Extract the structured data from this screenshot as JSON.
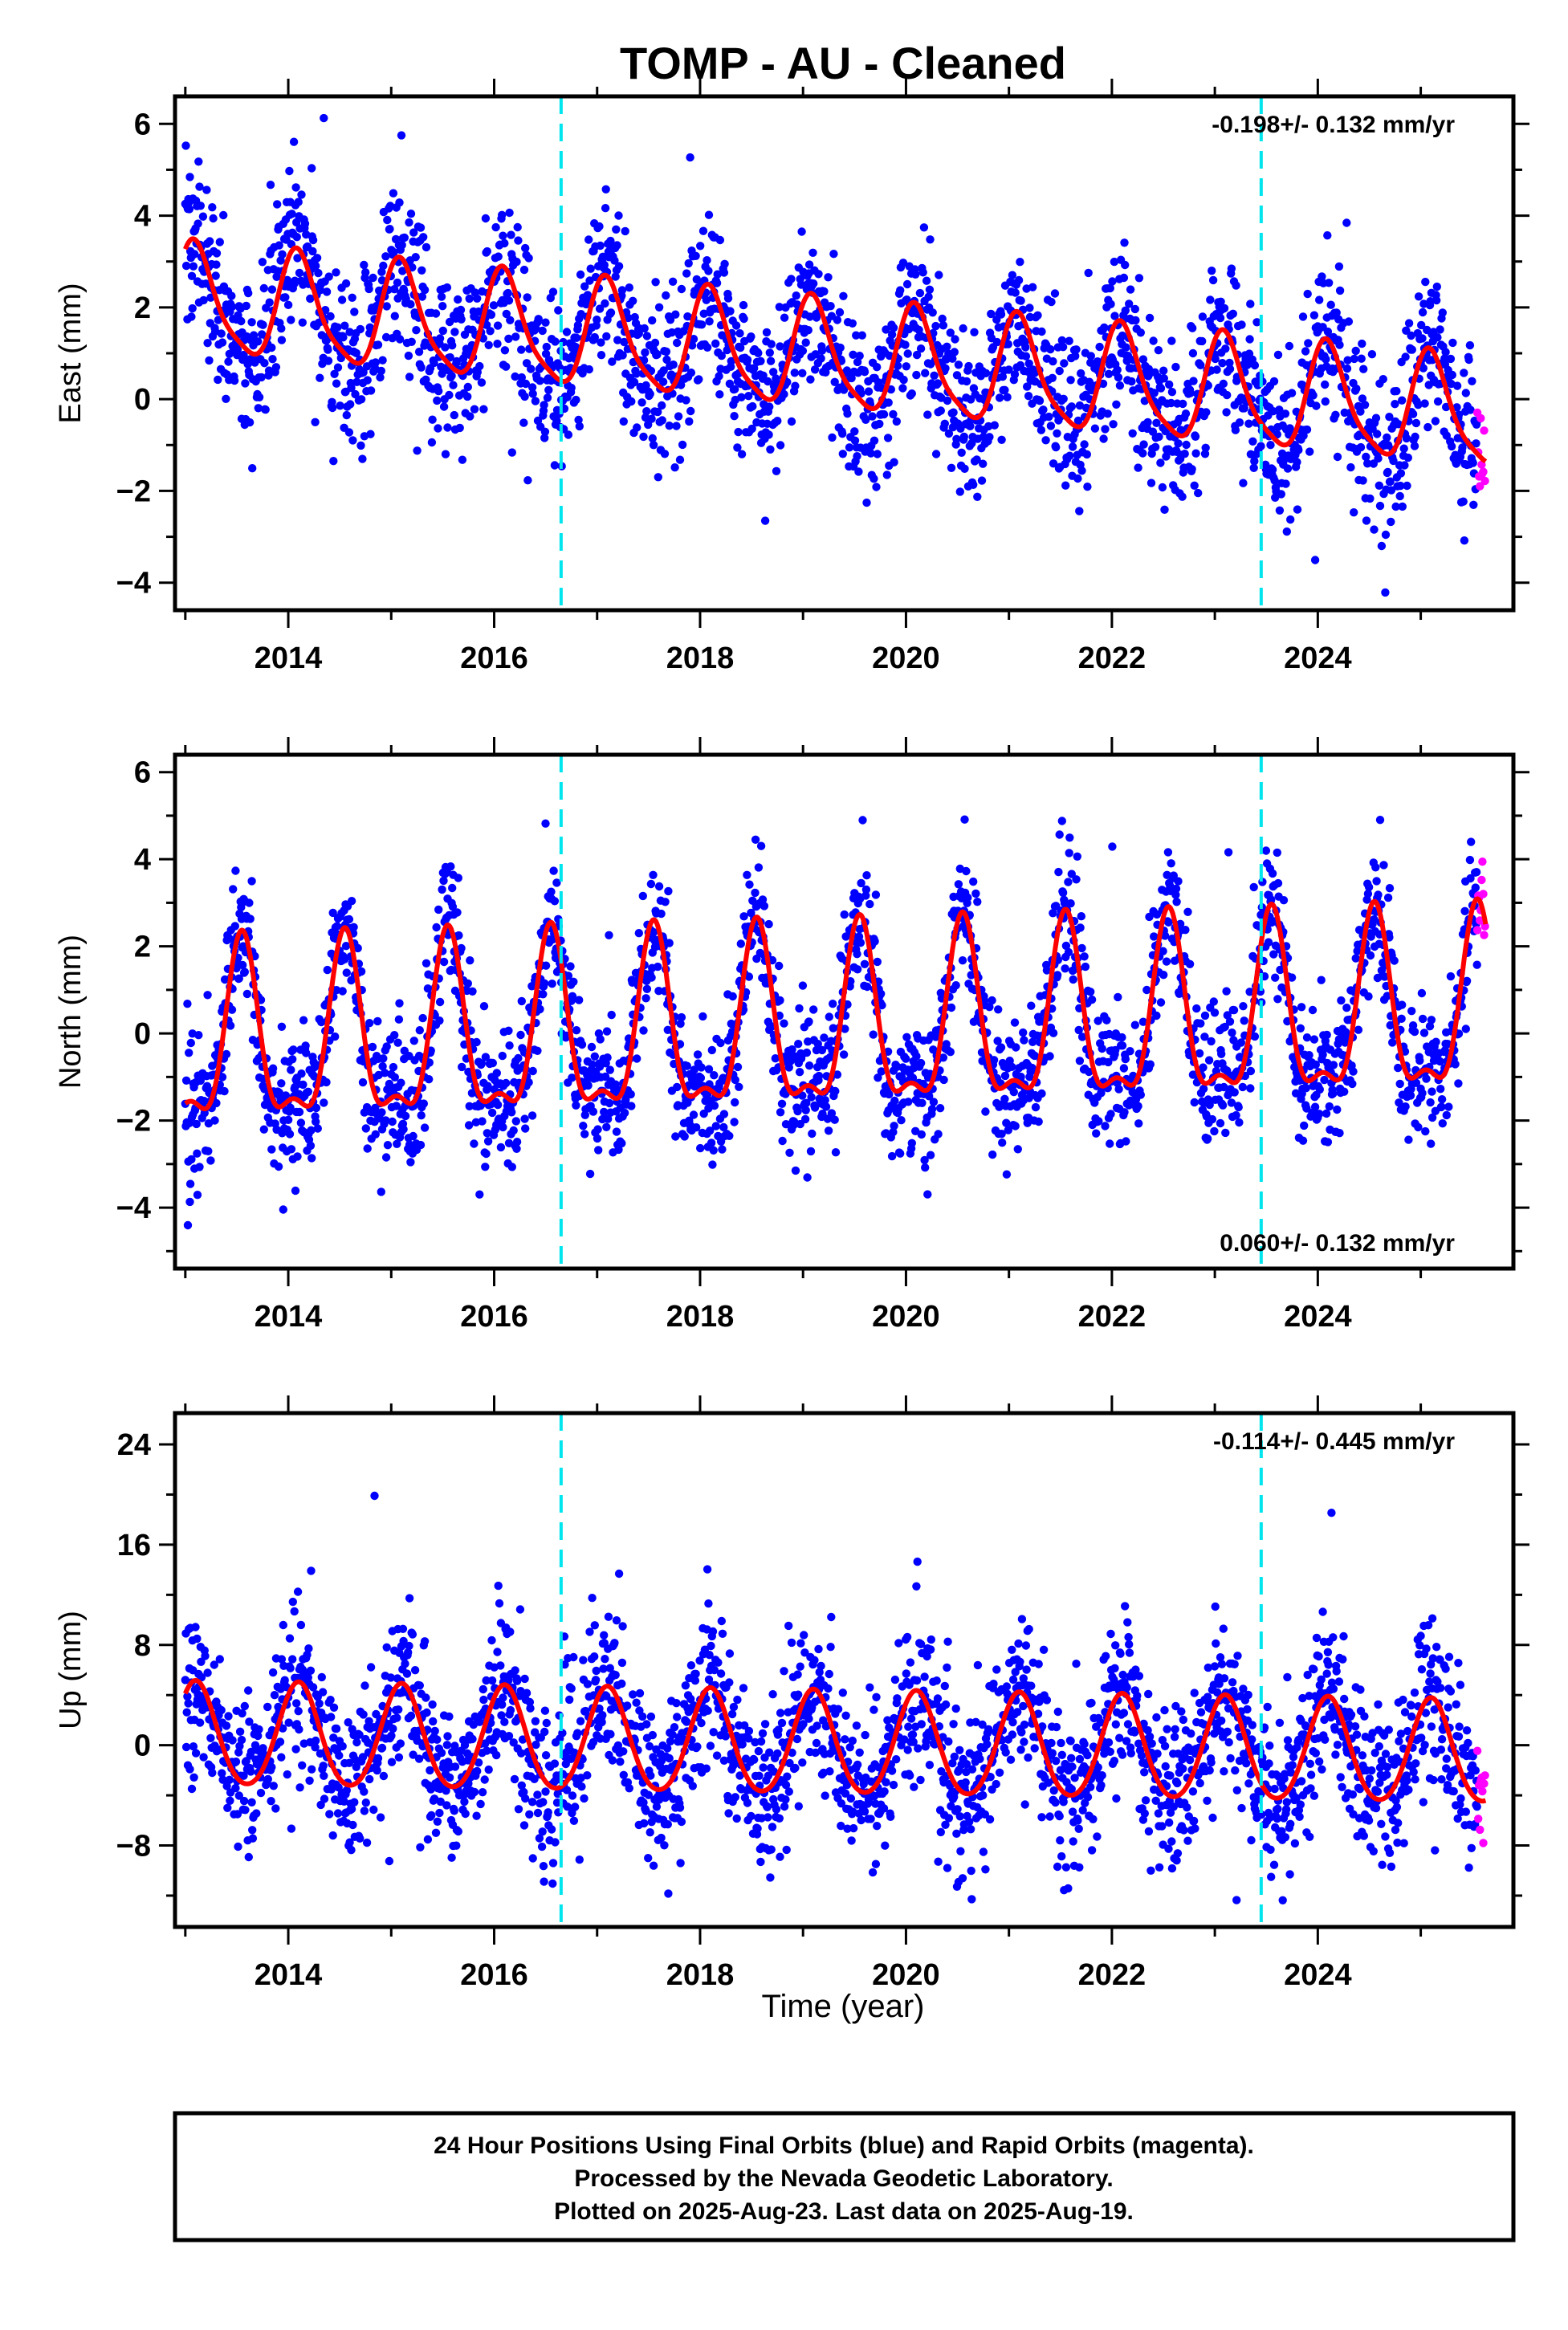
{
  "chart_data": {
    "type": "scatter",
    "title": "TOMP  - AU - Cleaned",
    "xlabel": "Time (year)",
    "xlim": [
      2012.9,
      2025.9
    ],
    "x_ticks": [
      2014,
      2016,
      2018,
      2020,
      2022,
      2024
    ],
    "equipment_change_epochs": [
      2016.65,
      2023.45
    ],
    "data_start": 2013.0,
    "last_data": 2025.63,
    "rapid_start": 2025.55,
    "series_colors": {
      "final": "#0000ff",
      "rapid": "#ff00ff",
      "fit": "#ff0000",
      "break": "#00e5ee"
    },
    "panels": [
      {
        "name": "east",
        "ylabel": "East (mm)",
        "ylim": [
          -4.6,
          6.6
        ],
        "y_ticks": [
          -4,
          -2,
          0,
          2,
          4,
          6
        ],
        "rate_text": "-0.198+/- 0.132 mm/yr",
        "rate_position": "top-right",
        "fit": {
          "offset": 0.95,
          "trend": -0.198,
          "annual": 1.15,
          "annual_peak": 2013.1,
          "semiannual": 0.25,
          "semiannual_phase": 2013.05
        },
        "scatter_sd": 0.9
      },
      {
        "name": "north",
        "ylabel": "North (mm)",
        "ylim": [
          -5.4,
          6.4
        ],
        "y_ticks": [
          -4,
          -2,
          0,
          2,
          4,
          6
        ],
        "rate_text": "0.060+/- 0.132 mm/yr",
        "rate_position": "bottom-right",
        "fit": {
          "offset": 0.0,
          "trend": 0.06,
          "annual": 1.95,
          "annual_peak": 2013.55,
          "semiannual": 0.75,
          "semiannual_phase": 2013.05
        },
        "scatter_sd": 0.8
      },
      {
        "name": "up",
        "ylabel": "Up (mm)",
        "ylim": [
          -14.5,
          26.5
        ],
        "y_ticks": [
          -8,
          0,
          8,
          16,
          24
        ],
        "rate_text": "-0.114+/- 0.445 mm/yr",
        "rate_position": "top-right",
        "fit": {
          "offset": 0.0,
          "trend": -0.114,
          "annual": 4.1,
          "annual_peak": 2013.1,
          "semiannual": 0.4,
          "semiannual_phase": 2013.1
        },
        "scatter_sd": 3.2
      }
    ]
  },
  "footer": {
    "line1": "24 Hour Positions Using Final Orbits (blue) and Rapid Orbits (magenta).",
    "line2": "Processed by the Nevada Geodetic Laboratory.",
    "line3": "Plotted on 2025-Aug-23. Last data on 2025-Aug-19."
  }
}
